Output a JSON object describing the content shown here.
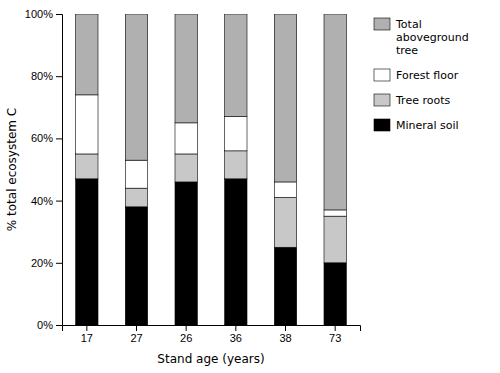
{
  "chart_data": {
    "type": "bar",
    "stacked": true,
    "categories": [
      "17",
      "27",
      "26",
      "36",
      "38",
      "73"
    ],
    "series": [
      {
        "name": "Mineral soil",
        "color": "#000000",
        "values": [
          47,
          38,
          46,
          47,
          25,
          20
        ]
      },
      {
        "name": "Tree roots",
        "color": "#c8c8c8",
        "values": [
          8,
          6,
          9,
          9,
          16,
          15
        ]
      },
      {
        "name": "Forest floor",
        "color": "#ffffff",
        "values": [
          19,
          9,
          10,
          11,
          5,
          2
        ]
      },
      {
        "name": "Total\naboveground\ntree",
        "color": "#b0b0b0",
        "values": [
          26,
          47,
          35,
          33,
          54,
          63
        ]
      }
    ],
    "xlabel": "Stand age (years)",
    "ylabel": "% total ecosystem C",
    "ylim": [
      0,
      100
    ],
    "yticks": [
      {
        "value": 0,
        "label": "0%"
      },
      {
        "value": 20,
        "label": "20%"
      },
      {
        "value": 40,
        "label": "40%"
      },
      {
        "value": 60,
        "label": "60%"
      },
      {
        "value": 80,
        "label": "80%"
      },
      {
        "value": 100,
        "label": "100%"
      }
    ],
    "grid": false,
    "legend": "right"
  }
}
